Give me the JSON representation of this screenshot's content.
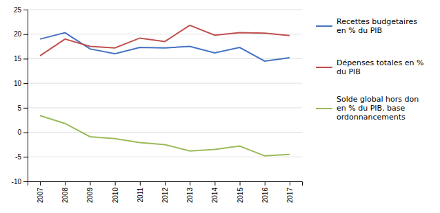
{
  "chart_data": {
    "type": "line",
    "x": [
      2007,
      2008,
      2009,
      2010,
      2011,
      2012,
      2013,
      2014,
      2015,
      2016,
      2017
    ],
    "series": [
      {
        "name": "Recettes budgetaires\nen % du PIB",
        "color": "#4472C4",
        "values": [
          19.0,
          20.3,
          17.0,
          16.0,
          17.3,
          17.2,
          17.5,
          16.2,
          17.3,
          14.5,
          15.2
        ]
      },
      {
        "name": "Dépenses totales en %\ndu PIB",
        "color": "#C0504D",
        "values": [
          15.6,
          19.0,
          17.5,
          17.2,
          19.2,
          18.5,
          21.8,
          19.8,
          20.3,
          20.2,
          19.7
        ]
      },
      {
        "name": "Solde global hors don\nen % du PIB, base\nordonnancements",
        "color": "#9BBB59",
        "values": [
          3.4,
          1.8,
          -0.9,
          -1.3,
          -2.1,
          -2.5,
          -3.8,
          -3.5,
          -2.8,
          -4.8,
          -4.5
        ]
      }
    ],
    "xlim": [
      2006.5,
      2017.5
    ],
    "xticks": [
      2007,
      2008,
      2009,
      2010,
      2011,
      2012,
      2013,
      2014,
      2015,
      2016,
      2017
    ],
    "ylim": [
      -10,
      25
    ],
    "yticks": [
      -10,
      -5,
      0,
      5,
      10,
      15,
      20,
      25
    ],
    "grid": true,
    "legend": "right"
  }
}
